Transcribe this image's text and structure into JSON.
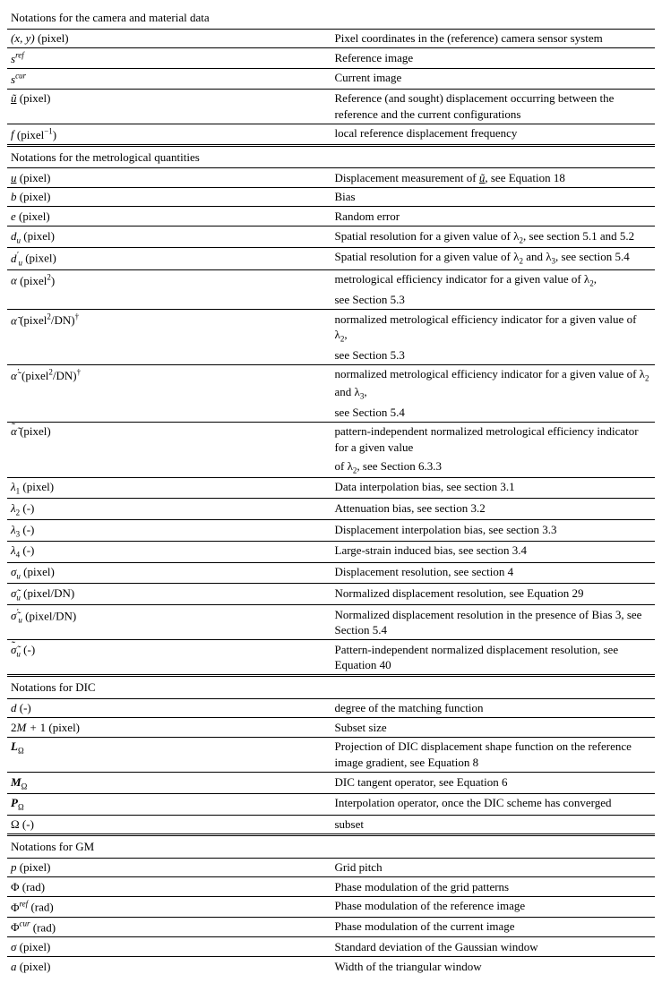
{
  "sections": {
    "camera": {
      "title": "Notations for the camera and material data"
    },
    "metro": {
      "title": "Notations for the metrological quantities"
    },
    "dic": {
      "title": "Notations for DIC"
    },
    "gm": {
      "title": "Notations for GM"
    }
  },
  "rows": {
    "xy": {
      "sym": "(x, y)",
      "unit": "(pixel)",
      "desc": "Pixel coordinates in the (reference) camera sensor system"
    },
    "sref": {
      "sym_html": "s<span class='sup'>ref</span>",
      "unit": "",
      "desc": "Reference image"
    },
    "scur": {
      "sym_html": "s<span class='sup'>cur</span>",
      "unit": "",
      "desc": "Current image"
    },
    "utilde": {
      "sym_html": "<u>ũ</u>",
      "unit": "(pixel)",
      "desc": "Reference (and sought) displacement occurring between the reference and the current configurations"
    },
    "f": {
      "sym": "f",
      "unit_html": "(pixel<span class='sup nosub'>−1</span>)",
      "desc": "local reference displacement frequency"
    },
    "u": {
      "sym_html": "<u>u</u>",
      "unit": "(pixel)",
      "desc_html": "Displacement measurement of <i><u>ũ</u></i>, see Equation 18"
    },
    "b": {
      "sym": "b",
      "unit": "(pixel)",
      "desc": "Bias"
    },
    "e": {
      "sym": "e ",
      "unit": "(pixel)",
      "desc": "Random error"
    },
    "du": {
      "sym_html": "d<span class='sub'>u</span> ",
      "unit": "(pixel)",
      "desc_html": "Spatial resolution for a given value of λ<span class='sub nosub'>2</span>, see section 5.1 and 5.2"
    },
    "dup": {
      "sym_html": "d<span class='sup'>′</span><span class='sub'>u</span> ",
      "unit": "(pixel)",
      "desc_html": "Spatial resolution for a given value of λ<span class='sub nosub'>2</span> and λ<span class='sub nosub'>3</span>, see section 5.4"
    },
    "alpha": {
      "sym": "α",
      "unit_html": "(pixel<span class='sup nosub'>2</span>)",
      "desc_html": "metrological efficiency indicator for a given value of λ<span class='sub nosub'>2</span>,"
    },
    "alpha2": {
      "sym": "",
      "unit": "",
      "desc": "see Section 5.3"
    },
    "alphah": {
      "sym_html": "α̃",
      "unit_html": "(pixel<span class='sup nosub'>2</span>/DN)<span class='sup nosub'>†</span>",
      "desc_html": "normalized metrological efficiency indicator for a given value of λ<span class='sub nosub'>2</span>,"
    },
    "alphah2": {
      "sym": "",
      "unit": "",
      "desc": "see Section 5.3"
    },
    "alphahp": {
      "sym_html": "α̃<span class='sup'>′</span>",
      "unit_html": "(pixel<span class='sup nosub'>2</span>/DN)<span class='sup nosub'>†</span>",
      "desc_html": "normalized metrological efficiency indicator for a given value of λ<span class='sub nosub'>2</span> and λ<span class='sub nosub'>3</span>,"
    },
    "alphahp2": {
      "sym": "",
      "unit": "",
      "desc": "see Section 5.4"
    },
    "alphahh": {
      "sym_html": "<span style='position:relative'>α̃<span style='position:absolute;left:0;top:-6px'>˜</span></span>",
      "unit": "(pixel)",
      "desc": "pattern-independent normalized metrological efficiency indicator for a given value"
    },
    "alphahh2": {
      "sym": "",
      "unit": "",
      "desc_html": "of λ<span class='sub nosub'>2</span>, see Section 6.3.3"
    },
    "l1": {
      "sym_html": "λ<span class='sub nosub'>1</span> ",
      "unit": "(pixel)",
      "desc": "Data interpolation bias, see section 3.1"
    },
    "l2": {
      "sym_html": "λ<span class='sub nosub'>2</span> ",
      "unit": "(-)",
      "desc": "Attenuation bias, see section 3.2"
    },
    "l3": {
      "sym_html": "λ<span class='sub nosub'>3</span> ",
      "unit": "(-)",
      "desc": "Displacement interpolation bias, see section 3.3"
    },
    "l4": {
      "sym_html": "λ<span class='sub nosub'>4</span>  ",
      "unit": "(-)",
      "desc": "Large-strain induced bias, see section 3.4"
    },
    "sigu": {
      "sym_html": "σ<span class='sub'>u</span>",
      "unit": "(pixel)",
      "desc": "Displacement resolution, see section 4"
    },
    "siguh": {
      "sym_html": "σ̃<span class='sub'>u</span>",
      "unit": "(pixel/DN)",
      "desc": "Normalized displacement resolution, see Equation 29"
    },
    "siguhp": {
      "sym_html": "σ̃<span class='sup'>′</span><span class='sub'>u</span>",
      "unit": "(pixel/DN)",
      "desc": "Normalized displacement resolution in the presence of Bias 3, see Section 5.4"
    },
    "siguhh": {
      "sym_html": "<span style='position:relative'>σ̃<span style='position:absolute;left:0;top:-6px'>˜</span></span><span class='sub'>u</span>",
      "unit": "(-)",
      "desc": "Pattern-independent normalized displacement resolution, see Equation 40"
    },
    "d": {
      "sym": "d",
      "unit": "(-)",
      "desc": "degree of the matching function"
    },
    "ss": {
      "sym_html": "<span style='font-style:normal'>2</span>M + <span style='font-style:normal'>1</span>",
      "unit": "(pixel)",
      "desc": "Subset size"
    },
    "Lomega": {
      "sym_html": "<b>L</b><span class='sub nosub'>Ω</span>",
      "unit": "",
      "desc": "Projection of DIC displacement shape function on the reference image gradient, see Equation 8"
    },
    "Momega": {
      "sym_html": "<b>M</b><span class='sub nosub'>Ω</span>",
      "unit": "",
      "desc": "DIC tangent operator, see Equation 6"
    },
    "Pomega": {
      "sym_html": "<b>P</b><span class='sub nosub'>Ω</span>",
      "unit": "",
      "desc": "Interpolation operator, once the DIC scheme has converged"
    },
    "Omega": {
      "sym_html": "<span style='font-style:normal'>Ω</span>  ",
      "unit": "(-)",
      "desc": "subset"
    },
    "p": {
      "sym": "p",
      "unit": "(pixel)",
      "desc": "Grid pitch"
    },
    "Phi": {
      "sym_html": "<span style='font-style:normal'>Φ</span>",
      "unit": "(rad)",
      "desc": "Phase modulation of the grid patterns"
    },
    "Phiref": {
      "sym_html": "<span style='font-style:normal'>Φ</span><span class='sup'>ref</span>",
      "unit": "(rad)",
      "desc": "Phase modulation of the reference image"
    },
    "Phicur": {
      "sym_html": "<span style='font-style:normal'>Φ</span><span class='sup'>cur</span>",
      "unit": "(rad)",
      "desc": "Phase modulation of the current image"
    },
    "sigma": {
      "sym": "σ",
      "unit": "(pixel)",
      "desc": "Standard deviation of the Gaussian window"
    },
    "a": {
      "sym": "a ",
      "unit": "(pixel)",
      "desc": "Width of the triangular window"
    }
  }
}
